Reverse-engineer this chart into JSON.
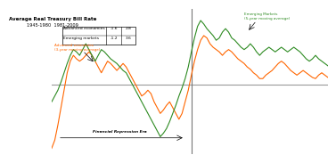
{
  "title": "Average Real Treasury Bill Rate",
  "subtitle": "1945-1980  1981-2009",
  "table_rows": [
    {
      "label": "Advanced economies",
      "v1": "-1.6",
      "v2": "2.8"
    },
    {
      "label": "Emerging markets",
      "v1": "-1.2",
      "v2": "3.6"
    }
  ],
  "adv_label": "Advanced economies\n(3-year moving average)",
  "em_label": "Emerging Markets\n(5-year moving average)",
  "fin_rep_label": "Financial Repression Era",
  "adv_color": "#FF6600",
  "em_color": "#2E8B22",
  "zero_line_color": "#999999",
  "divider_color": "#777777",
  "background": "#ffffff",
  "adv_data": [
    -5.5,
    -4.8,
    -3.5,
    -2.0,
    -0.5,
    1.0,
    2.0,
    2.5,
    2.2,
    2.0,
    2.2,
    2.5,
    2.8,
    2.5,
    2.0,
    1.5,
    1.0,
    1.5,
    2.0,
    1.8,
    1.5,
    1.2,
    1.5,
    1.8,
    1.5,
    1.0,
    0.5,
    0.0,
    -0.5,
    -1.0,
    -0.8,
    -0.5,
    -0.8,
    -1.5,
    -2.0,
    -2.5,
    -2.2,
    -1.8,
    -1.5,
    -2.0,
    -2.5,
    -3.0,
    -2.5,
    -1.5,
    -0.5,
    0.8,
    2.0,
    3.0,
    3.8,
    4.2,
    4.0,
    3.5,
    3.2,
    3.0,
    2.8,
    2.5,
    2.8,
    3.0,
    2.8,
    2.5,
    2.2,
    2.0,
    1.8,
    1.5,
    1.3,
    1.0,
    0.8,
    0.5,
    0.5,
    0.8,
    1.0,
    1.2,
    1.5,
    1.8,
    2.0,
    1.8,
    1.5,
    1.2,
    1.0,
    0.8,
    1.0,
    1.2,
    1.0,
    0.8,
    0.6,
    0.5,
    0.8,
    1.0,
    0.8,
    0.6
  ],
  "em_data": [
    -1.5,
    -1.0,
    -0.5,
    0.2,
    1.0,
    1.8,
    2.5,
    3.0,
    2.8,
    2.5,
    3.0,
    3.5,
    3.0,
    2.5,
    2.0,
    2.5,
    3.0,
    2.8,
    2.5,
    2.2,
    2.0,
    1.8,
    1.5,
    1.2,
    1.0,
    0.5,
    0.0,
    -0.5,
    -1.0,
    -1.5,
    -2.0,
    -2.5,
    -3.0,
    -3.5,
    -4.0,
    -4.5,
    -4.2,
    -3.8,
    -3.2,
    -2.5,
    -1.8,
    -1.0,
    -0.3,
    0.5,
    1.5,
    2.8,
    4.0,
    5.0,
    5.5,
    5.2,
    4.8,
    4.5,
    4.2,
    3.8,
    4.0,
    4.5,
    4.8,
    4.5,
    4.0,
    3.8,
    3.5,
    3.2,
    3.0,
    3.2,
    3.5,
    3.2,
    2.8,
    2.5,
    2.8,
    3.0,
    3.2,
    3.0,
    2.8,
    3.0,
    3.2,
    3.0,
    2.8,
    3.0,
    3.2,
    3.0,
    2.8,
    2.5,
    2.2,
    2.0,
    2.2,
    2.5,
    2.2,
    2.0,
    1.8,
    1.6
  ],
  "n_points": 90,
  "divider_idx": 45,
  "xlim": [
    0,
    89
  ],
  "ylim": [
    -6.0,
    6.5
  ]
}
